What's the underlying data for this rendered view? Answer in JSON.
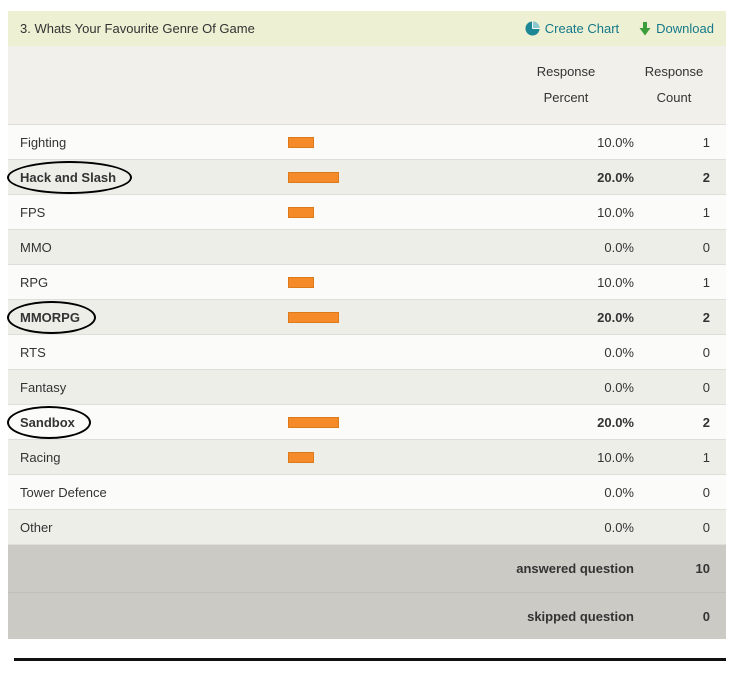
{
  "header": {
    "title": "3. Whats Your Favourite Genre Of Game",
    "create_chart_label": "Create Chart",
    "download_label": "Download"
  },
  "table": {
    "col_headers": [
      {
        "line1": "Response",
        "line2": "Percent"
      },
      {
        "line1": "Response",
        "line2": "Count"
      }
    ],
    "rows": [
      {
        "label": "Fighting",
        "percent": "10.0%",
        "count": "1",
        "value": 10,
        "bold": false,
        "circled": false
      },
      {
        "label": "Hack and Slash",
        "percent": "20.0%",
        "count": "2",
        "value": 20,
        "bold": true,
        "circled": true
      },
      {
        "label": "FPS",
        "percent": "10.0%",
        "count": "1",
        "value": 10,
        "bold": false,
        "circled": false
      },
      {
        "label": "MMO",
        "percent": "0.0%",
        "count": "0",
        "value": 0,
        "bold": false,
        "circled": false
      },
      {
        "label": "RPG",
        "percent": "10.0%",
        "count": "1",
        "value": 10,
        "bold": false,
        "circled": false
      },
      {
        "label": "MMORPG",
        "percent": "20.0%",
        "count": "2",
        "value": 20,
        "bold": true,
        "circled": true
      },
      {
        "label": "RTS",
        "percent": "0.0%",
        "count": "0",
        "value": 0,
        "bold": false,
        "circled": false
      },
      {
        "label": "Fantasy",
        "percent": "0.0%",
        "count": "0",
        "value": 0,
        "bold": false,
        "circled": false
      },
      {
        "label": "Sandbox",
        "percent": "20.0%",
        "count": "2",
        "value": 20,
        "bold": true,
        "circled": true
      },
      {
        "label": "Racing",
        "percent": "10.0%",
        "count": "1",
        "value": 10,
        "bold": false,
        "circled": false
      },
      {
        "label": "Tower Defence",
        "percent": "0.0%",
        "count": "0",
        "value": 0,
        "bold": false,
        "circled": false
      },
      {
        "label": "Other",
        "percent": "0.0%",
        "count": "0",
        "value": 0,
        "bold": false,
        "circled": false
      }
    ]
  },
  "footer": {
    "rows": [
      {
        "label": "answered question",
        "value": "10"
      },
      {
        "label": "skipped question",
        "value": "0"
      }
    ]
  },
  "colors": {
    "bar_orange": "#f48a28",
    "bar_border": "#dd7a1c",
    "title_bg": "#edf0d2",
    "header_bg": "#f1f0ea",
    "row_alt_bg": "#eeeee9",
    "footer_bg": "#cbcac4",
    "link_teal": "#15798b",
    "arrow_green": "#3b9e3b",
    "annotation_black": "#000000"
  }
}
